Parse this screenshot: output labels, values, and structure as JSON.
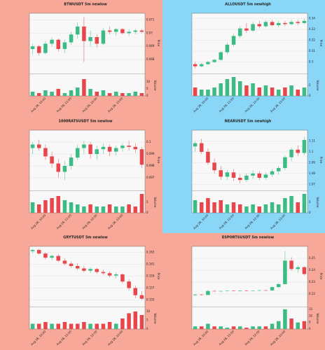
{
  "chart_data": [
    {
      "type": "candlestick",
      "title": "BTWUSDT 5m newlow",
      "background": "#f7a898",
      "up_color": "#3dbb84",
      "down_color": "#e8464b",
      "price_label": "Price",
      "volume_label": "Volume",
      "categories": [
        null,
        null,
        "Aug 28, 10:00",
        null,
        null,
        null,
        "Aug 28, 11:00",
        null,
        null,
        null,
        "Aug 28, 12:00",
        null,
        null,
        null,
        "Aug 28, 13:00",
        null,
        null,
        null
      ],
      "ohlc": [
        [
          0.0688,
          0.0692,
          0.0684,
          0.069
        ],
        [
          0.069,
          0.0691,
          0.0683,
          0.0685
        ],
        [
          0.0685,
          0.0694,
          0.0684,
          0.0692
        ],
        [
          0.0692,
          0.0697,
          0.069,
          0.0695
        ],
        [
          0.0695,
          0.0696,
          0.0686,
          0.0688
        ],
        [
          0.0688,
          0.0695,
          0.0685,
          0.0693
        ],
        [
          0.0693,
          0.0701,
          0.0691,
          0.0699
        ],
        [
          0.0699,
          0.0708,
          0.0696,
          0.0705
        ],
        [
          0.0705,
          0.0712,
          0.0678,
          0.0694
        ],
        [
          0.0694,
          0.0702,
          0.069,
          0.0697
        ],
        [
          0.0697,
          0.0699,
          0.0689,
          0.0692
        ],
        [
          0.0692,
          0.0704,
          0.0691,
          0.0702
        ],
        [
          0.0702,
          0.0705,
          0.0699,
          0.0701
        ],
        [
          0.0701,
          0.0704,
          0.0698,
          0.0703
        ],
        [
          0.0703,
          0.0704,
          0.0699,
          0.07
        ],
        [
          0.07,
          0.0703,
          0.0698,
          0.0701
        ],
        [
          0.0701,
          0.0703,
          0.0699,
          0.0702
        ],
        [
          0.0702,
          0.0703,
          0.07,
          0.0701
        ]
      ],
      "volume": [
        3,
        2,
        4,
        3,
        5,
        2,
        4,
        6,
        12,
        5,
        3,
        4,
        2,
        3,
        2,
        2,
        3,
        2
      ],
      "ylim": [
        0.067,
        0.0715
      ],
      "yticks": [
        0.068,
        0.069,
        0.07,
        0.071
      ],
      "vlim": [
        0,
        15
      ],
      "vticks": [
        0,
        5,
        10
      ]
    },
    {
      "type": "candlestick",
      "title": "ALLOUSDT 5m newhigh",
      "background": "#89d6f7",
      "up_color": "#3dbb84",
      "down_color": "#e8464b",
      "price_label": "Price",
      "volume_label": "Volume",
      "categories": [
        null,
        null,
        "Aug 28, 10:00",
        null,
        null,
        null,
        "Aug 28, 11:00",
        null,
        null,
        null,
        "Aug 28, 12:00",
        null,
        null,
        null,
        "Aug 28, 13:00",
        null,
        null,
        null
      ],
      "ohlc": [
        [
          0.298,
          0.3,
          0.294,
          0.296
        ],
        [
          0.296,
          0.299,
          0.295,
          0.298
        ],
        [
          0.298,
          0.301,
          0.297,
          0.3
        ],
        [
          0.3,
          0.303,
          0.299,
          0.302
        ],
        [
          0.302,
          0.31,
          0.301,
          0.309
        ],
        [
          0.309,
          0.318,
          0.307,
          0.316
        ],
        [
          0.316,
          0.326,
          0.314,
          0.324
        ],
        [
          0.324,
          0.333,
          0.322,
          0.331
        ],
        [
          0.331,
          0.336,
          0.327,
          0.329
        ],
        [
          0.329,
          0.337,
          0.328,
          0.335
        ],
        [
          0.335,
          0.338,
          0.331,
          0.333
        ],
        [
          0.333,
          0.339,
          0.332,
          0.337
        ],
        [
          0.337,
          0.339,
          0.333,
          0.334
        ],
        [
          0.334,
          0.338,
          0.332,
          0.336
        ],
        [
          0.336,
          0.338,
          0.333,
          0.335
        ],
        [
          0.335,
          0.339,
          0.334,
          0.337
        ],
        [
          0.337,
          0.339,
          0.334,
          0.336
        ],
        [
          0.336,
          0.34,
          0.335,
          0.338
        ]
      ],
      "volume": [
        4,
        3,
        3,
        4,
        6,
        8,
        9,
        7,
        5,
        6,
        4,
        5,
        4,
        3,
        4,
        5,
        3,
        4
      ],
      "ylim": [
        0.29,
        0.345
      ],
      "yticks": [
        0.3,
        0.31,
        0.32,
        0.33,
        0.34
      ],
      "vlim": [
        0,
        10
      ],
      "vticks": [
        0,
        5
      ]
    },
    {
      "type": "candlestick",
      "title": "1000RATSUSDT 5m newlow",
      "background": "#f7a898",
      "up_color": "#3dbb84",
      "down_color": "#e8464b",
      "price_label": "Price",
      "volume_label": "Volume",
      "categories": [
        null,
        null,
        "Aug 28, 10:00",
        null,
        null,
        null,
        "Aug 28, 11:00",
        null,
        null,
        null,
        "Aug 28, 12:00",
        null,
        null,
        null,
        "Aug 28, 13:00",
        null,
        null,
        null
      ],
      "ohlc": [
        [
          0.0995,
          0.1,
          0.099,
          0.0998
        ],
        [
          0.0998,
          0.1002,
          0.0993,
          0.0995
        ],
        [
          0.0995,
          0.0998,
          0.0985,
          0.0988
        ],
        [
          0.0988,
          0.0992,
          0.0978,
          0.0982
        ],
        [
          0.0982,
          0.0986,
          0.097,
          0.0975
        ],
        [
          0.0975,
          0.0984,
          0.0968,
          0.098
        ],
        [
          0.098,
          0.099,
          0.0977,
          0.0987
        ],
        [
          0.0987,
          0.0998,
          0.0985,
          0.0995
        ],
        [
          0.0995,
          0.1001,
          0.099,
          0.0998
        ],
        [
          0.0998,
          0.1,
          0.0986,
          0.099
        ],
        [
          0.099,
          0.0997,
          0.0985,
          0.0994
        ],
        [
          0.0994,
          0.0999,
          0.099,
          0.0996
        ],
        [
          0.0996,
          0.0998,
          0.0988,
          0.0992
        ],
        [
          0.0992,
          0.0997,
          0.0989,
          0.0995
        ],
        [
          0.0995,
          0.0999,
          0.0992,
          0.0997
        ],
        [
          0.0997,
          0.1001,
          0.0993,
          0.0996
        ],
        [
          0.0996,
          0.0999,
          0.0991,
          0.0994
        ],
        [
          0.0994,
          0.0996,
          0.0978,
          0.0981
        ]
      ],
      "volume": [
        5,
        4,
        6,
        7,
        8,
        6,
        5,
        4,
        3,
        4,
        3,
        3,
        4,
        3,
        3,
        4,
        3,
        9
      ],
      "ylim": [
        0.096,
        0.101
      ],
      "yticks": [
        0.097,
        0.098,
        0.099,
        0.1
      ],
      "vlim": [
        0,
        10
      ],
      "vticks": [
        0,
        5
      ]
    },
    {
      "type": "candlestick",
      "title": "NEARUSDT 5m newhigh",
      "background": "#89d6f7",
      "up_color": "#3dbb84",
      "down_color": "#e8464b",
      "price_label": "Price",
      "volume_label": "Volume",
      "categories": [
        null,
        null,
        "Aug 28, 10:00",
        null,
        null,
        null,
        "Aug 28, 11:00",
        null,
        null,
        null,
        "Aug 28, 12:00",
        null,
        null,
        null,
        "Aug 28, 13:00",
        null,
        null,
        null
      ],
      "ohlc": [
        [
          1.105,
          1.11,
          1.1,
          1.108
        ],
        [
          1.108,
          1.112,
          1.098,
          1.1
        ],
        [
          1.1,
          1.103,
          1.088,
          1.09
        ],
        [
          1.09,
          1.094,
          1.08,
          1.083
        ],
        [
          1.083,
          1.087,
          1.074,
          1.077
        ],
        [
          1.077,
          1.083,
          1.074,
          1.081
        ],
        [
          1.081,
          1.084,
          1.073,
          1.076
        ],
        [
          1.076,
          1.079,
          1.071,
          1.074
        ],
        [
          1.074,
          1.08,
          1.072,
          1.078
        ],
        [
          1.078,
          1.083,
          1.075,
          1.08
        ],
        [
          1.08,
          1.082,
          1.074,
          1.076
        ],
        [
          1.076,
          1.081,
          1.074,
          1.079
        ],
        [
          1.079,
          1.084,
          1.077,
          1.082
        ],
        [
          1.082,
          1.087,
          1.079,
          1.085
        ],
        [
          1.085,
          1.097,
          1.083,
          1.095
        ],
        [
          1.095,
          1.104,
          1.091,
          1.102
        ],
        [
          1.102,
          1.106,
          1.096,
          1.099
        ],
        [
          1.099,
          1.114,
          1.097,
          1.111
        ]
      ],
      "volume": [
        6,
        5,
        7,
        5,
        6,
        4,
        5,
        4,
        3,
        4,
        3,
        4,
        5,
        4,
        7,
        8,
        5,
        9
      ],
      "ylim": [
        1.065,
        1.12
      ],
      "yticks": [
        1.07,
        1.08,
        1.09,
        1.1,
        1.11
      ],
      "vlim": [
        0,
        10
      ],
      "vticks": [
        0,
        5
      ]
    },
    {
      "type": "candlestick",
      "title": "GRYTUSDT 5m newlow",
      "background": "#f7a898",
      "up_color": "#3dbb84",
      "down_color": "#e8464b",
      "price_label": "Price",
      "volume_label": "Volume",
      "categories": [
        null,
        null,
        "Aug 28, 10:00",
        null,
        null,
        null,
        "Aug 28, 11:00",
        null,
        null,
        null,
        "Aug 28, 12:00",
        null,
        null,
        null,
        "Aug 28, 13:00",
        null,
        null,
        null
      ],
      "ohlc": [
        [
          0.1632,
          0.1636,
          0.1628,
          0.1634
        ],
        [
          0.1634,
          0.1636,
          0.1626,
          0.1628
        ],
        [
          0.1628,
          0.163,
          0.1618,
          0.1621
        ],
        [
          0.1621,
          0.1626,
          0.1617,
          0.1624
        ],
        [
          0.1624,
          0.1627,
          0.1614,
          0.1616
        ],
        [
          0.1616,
          0.162,
          0.1608,
          0.1611
        ],
        [
          0.1611,
          0.1615,
          0.1604,
          0.1607
        ],
        [
          0.1607,
          0.1612,
          0.16,
          0.1603
        ],
        [
          0.1603,
          0.1607,
          0.1596,
          0.1599
        ],
        [
          0.1599,
          0.1605,
          0.1595,
          0.1602
        ],
        [
          0.1602,
          0.1604,
          0.1594,
          0.1597
        ],
        [
          0.1597,
          0.1601,
          0.1592,
          0.1595
        ],
        [
          0.1595,
          0.1598,
          0.1588,
          0.1591
        ],
        [
          0.1591,
          0.1596,
          0.1586,
          0.1593
        ],
        [
          0.1593,
          0.1595,
          0.1578,
          0.1581
        ],
        [
          0.1581,
          0.1585,
          0.1566,
          0.157
        ],
        [
          0.157,
          0.1574,
          0.1553,
          0.1558
        ],
        [
          0.1558,
          0.1565,
          0.155,
          0.1552
        ]
      ],
      "volume": [
        3,
        3,
        4,
        3,
        3,
        4,
        3,
        3,
        4,
        3,
        3,
        3,
        4,
        3,
        6,
        9,
        10,
        8
      ],
      "ylim": [
        0.154,
        0.164
      ],
      "yticks": [
        0.155,
        0.157,
        0.159,
        0.161,
        0.163
      ],
      "vlim": [
        0,
        12
      ],
      "vticks": [
        0,
        5,
        10
      ]
    },
    {
      "type": "candlestick",
      "title": "ESPORTSUSDT 5m newlow",
      "background": "#f7a898",
      "up_color": "#3dbb84",
      "down_color": "#e8464b",
      "price_label": "Price",
      "volume_label": "Volume",
      "categories": [
        null,
        null,
        "Aug 28, 10:00",
        null,
        null,
        null,
        "Aug 28, 11:00",
        null,
        null,
        null,
        "Aug 28, 12:00",
        null,
        null,
        null,
        "Aug 28, 13:00",
        null,
        null,
        null
      ],
      "ohlc": [
        [
          0.219,
          0.2198,
          0.2185,
          0.2195
        ],
        [
          0.2195,
          0.22,
          0.2188,
          0.2192
        ],
        [
          0.2192,
          0.2235,
          0.219,
          0.2225
        ],
        [
          0.2225,
          0.2232,
          0.2218,
          0.2222
        ],
        [
          0.2222,
          0.2228,
          0.2215,
          0.2225
        ],
        [
          0.2225,
          0.223,
          0.222,
          0.2227
        ],
        [
          0.2227,
          0.2232,
          0.2222,
          0.2224
        ],
        [
          0.2224,
          0.223,
          0.222,
          0.2228
        ],
        [
          0.2228,
          0.2233,
          0.2223,
          0.2226
        ],
        [
          0.2226,
          0.2231,
          0.2221,
          0.2229
        ],
        [
          0.2229,
          0.2235,
          0.2225,
          0.2231
        ],
        [
          0.2231,
          0.2236,
          0.2226,
          0.223
        ],
        [
          0.223,
          0.2262,
          0.2228,
          0.2258
        ],
        [
          0.2258,
          0.229,
          0.2252,
          0.2283
        ],
        [
          0.2283,
          0.256,
          0.228,
          0.248
        ],
        [
          0.248,
          0.251,
          0.2395,
          0.241
        ],
        [
          0.241,
          0.244,
          0.238,
          0.2425
        ],
        [
          0.2425,
          0.2435,
          0.2355,
          0.2368
        ]
      ],
      "volume": [
        2,
        2,
        4,
        2,
        2,
        1,
        2,
        2,
        1,
        2,
        2,
        2,
        4,
        6,
        15,
        8,
        5,
        6
      ],
      "ylim": [
        0.21,
        0.26
      ],
      "yticks": [
        0.22,
        0.23,
        0.24,
        0.25
      ],
      "vlim": [
        0,
        16
      ],
      "vticks": [
        0,
        5,
        10,
        15
      ]
    }
  ]
}
